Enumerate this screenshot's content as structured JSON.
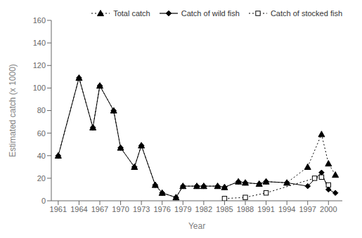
{
  "chart_data": {
    "type": "line",
    "xlabel": "Year",
    "ylabel": "Estimated catch (x 1000)",
    "xlim": [
      1960,
      2002
    ],
    "xticks": [
      1961,
      1964,
      1967,
      1970,
      1973,
      1976,
      1979,
      1982,
      1985,
      1988,
      1991,
      1994,
      1997,
      2000
    ],
    "ylim": [
      0,
      160
    ],
    "yticks": [
      0,
      20,
      40,
      60,
      80,
      100,
      120,
      140,
      160
    ],
    "grid": false,
    "legend": "upper right",
    "series": [
      {
        "name": "Total catch",
        "color": "black",
        "marker": "triangle",
        "line_style": "dotted",
        "x": [
          1961,
          1964,
          1966,
          1967,
          1969,
          1970,
          1972,
          1973,
          1975,
          1976,
          1978,
          1979,
          1981,
          1982,
          1984,
          1985,
          1987,
          1988,
          1990,
          1991,
          1994,
          1997,
          1999,
          2000,
          2001
        ],
        "values": [
          40,
          109,
          65,
          102,
          80,
          47,
          30,
          49,
          14,
          7,
          3,
          13,
          13,
          13,
          13,
          12,
          17,
          16,
          15,
          17,
          16,
          30,
          59,
          33,
          23
        ]
      },
      {
        "name": "Catch of wild fish",
        "color": "black",
        "marker": "diamond",
        "line_style": "solid",
        "x": [
          1961,
          1964,
          1966,
          1967,
          1969,
          1970,
          1972,
          1973,
          1975,
          1976,
          1978,
          1979,
          1981,
          1982,
          1984,
          1985,
          1987,
          1988,
          1990,
          1991,
          1994,
          1997,
          1999,
          2000,
          2001
        ],
        "values": [
          40,
          109,
          65,
          102,
          80,
          47,
          30,
          49,
          14,
          7,
          3,
          13,
          13,
          13,
          13,
          12,
          17,
          16,
          15,
          17,
          16,
          13,
          25,
          10,
          7
        ]
      },
      {
        "name": "Catch of stocked fish",
        "color": "black",
        "marker": "open_square",
        "line_style": "dotted",
        "x": [
          1985,
          1988,
          1991,
          1998,
          1999,
          2000
        ],
        "values": [
          2,
          3,
          7,
          20,
          21,
          14
        ]
      }
    ]
  }
}
